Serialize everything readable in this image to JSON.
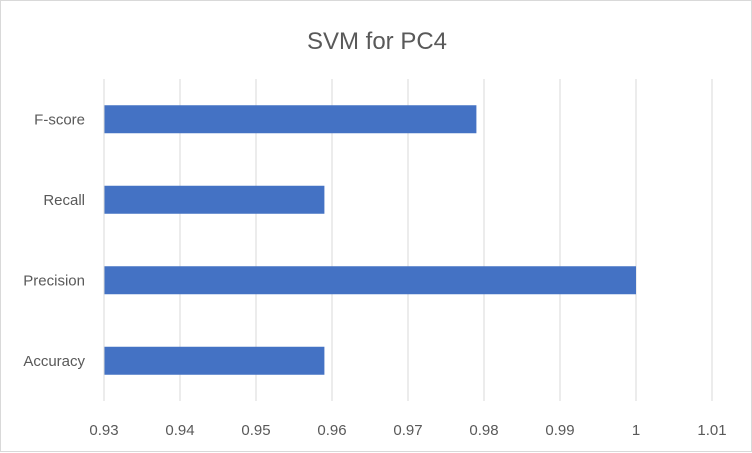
{
  "chart_data": {
    "type": "bar",
    "orientation": "horizontal",
    "title": "SVM for PC4",
    "categories": [
      "Accuracy",
      "Precision",
      "Recall",
      "F-score"
    ],
    "values": [
      0.959,
      1.0,
      0.959,
      0.979
    ],
    "xlim": [
      0.93,
      1.01
    ],
    "xticks": [
      "0.93",
      "0.94",
      "0.95",
      "0.96",
      "0.97",
      "0.98",
      "0.99",
      "1",
      "1.01"
    ],
    "xlabel": "",
    "ylabel": "",
    "grid": true,
    "legend": "none",
    "colors": {
      "bar": "#4472C4",
      "grid": "#d9d9d9",
      "text": "#595959"
    }
  }
}
